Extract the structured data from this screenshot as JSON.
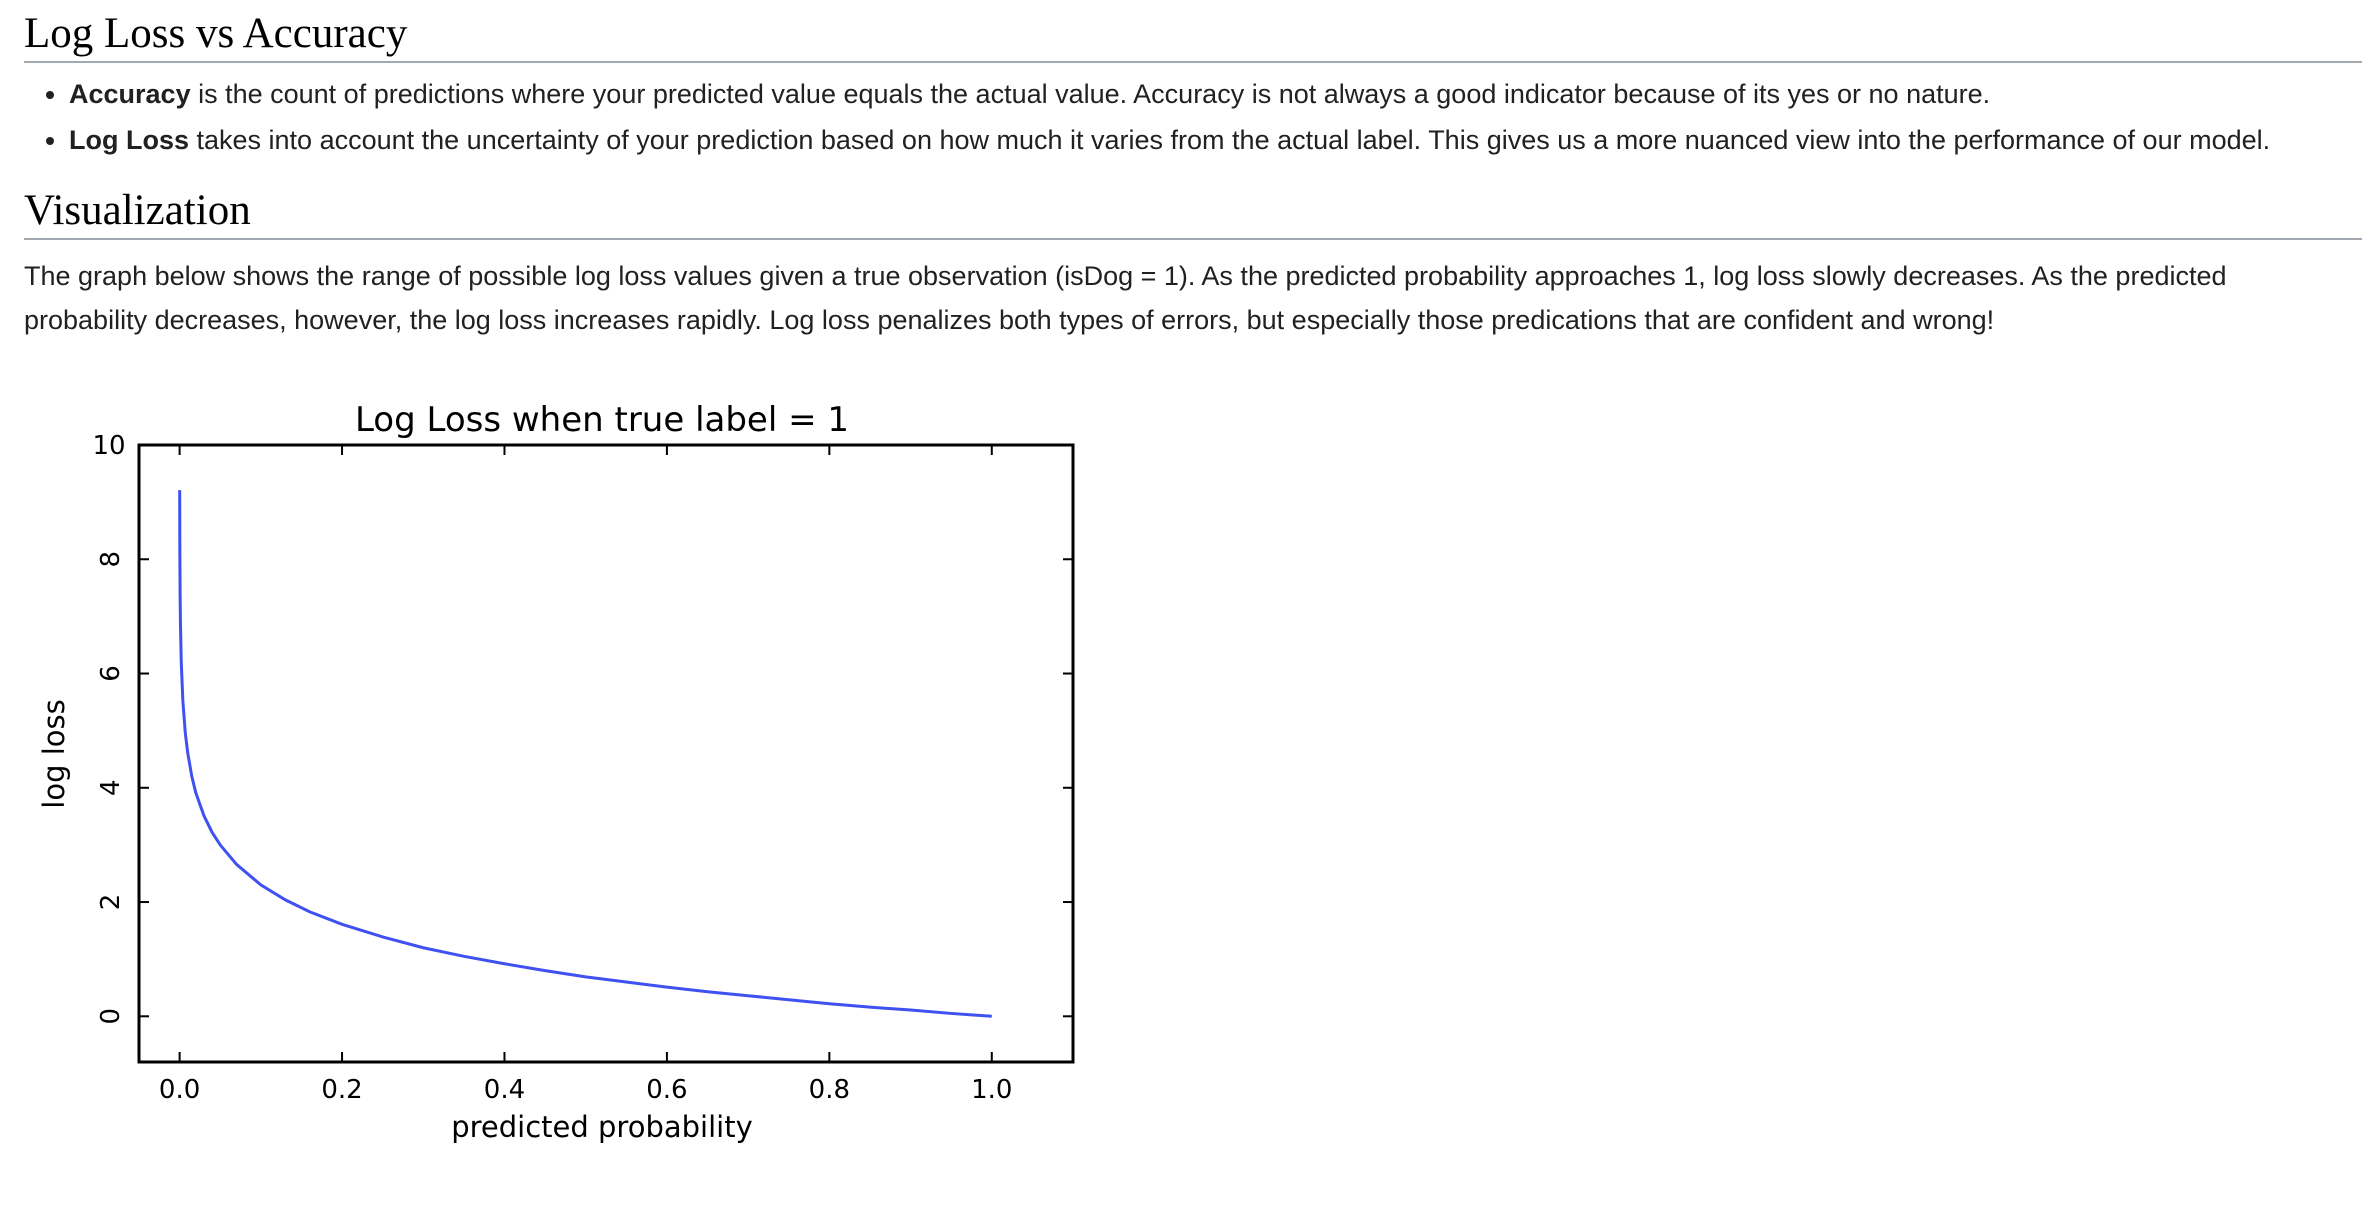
{
  "sections": {
    "accuracy_heading": "Log Loss vs Accuracy",
    "bullets": [
      {
        "term": "Accuracy",
        "text": " is the count of predictions where your predicted value equals the actual value. Accuracy is not always a good indicator because of its yes or no nature."
      },
      {
        "term": "Log Loss",
        "text": " takes into account the uncertainty of your prediction based on how much it varies from the actual label. This gives us a more nuanced view into the performance of our model."
      }
    ],
    "visualization_heading": "Visualization",
    "visualization_text": "The graph below shows the range of possible log loss values given a true observation (isDog = 1). As the predicted probability approaches 1, log loss slowly decreases. As the predicted probability decreases, however, the log loss increases rapidly. Log loss penalizes both types of errors, but especially those predications that are confident and wrong!"
  },
  "chart_data": {
    "type": "line",
    "title": "Log Loss when true label = 1",
    "xlabel": "predicted probability",
    "ylabel": "log loss",
    "xlim": [
      -0.05,
      1.1
    ],
    "ylim": [
      -0.8,
      10
    ],
    "xticks": [
      "0.0",
      "0.2",
      "0.4",
      "0.6",
      "0.8",
      "1.0"
    ],
    "yticks": [
      "0",
      "2",
      "4",
      "6",
      "8",
      "10"
    ],
    "grid": false,
    "line_color": "#3f51f0",
    "series": [
      {
        "x": [
          0.0001,
          0.0003,
          0.0006,
          0.001,
          0.002,
          0.004,
          0.007,
          0.01,
          0.015,
          0.02,
          0.03,
          0.04,
          0.05,
          0.07,
          0.1,
          0.13,
          0.16,
          0.2,
          0.25,
          0.3,
          0.35,
          0.4,
          0.45,
          0.5,
          0.55,
          0.6,
          0.65,
          0.7,
          0.75,
          0.8,
          0.85,
          0.9,
          0.95,
          1.0
        ],
        "y": [
          9.21,
          8.11,
          7.42,
          6.91,
          6.21,
          5.52,
          4.96,
          4.61,
          4.2,
          3.91,
          3.51,
          3.22,
          3.0,
          2.66,
          2.3,
          2.04,
          1.83,
          1.61,
          1.39,
          1.2,
          1.05,
          0.92,
          0.8,
          0.69,
          0.6,
          0.51,
          0.43,
          0.36,
          0.29,
          0.22,
          0.16,
          0.11,
          0.05,
          0.0
        ]
      }
    ]
  }
}
